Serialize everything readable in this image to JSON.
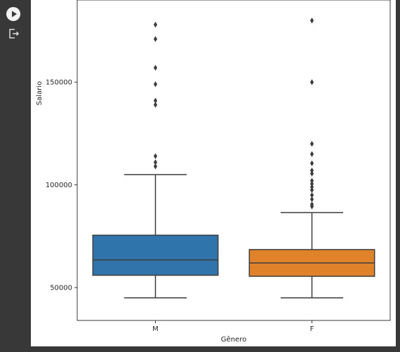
{
  "toolbar": {
    "run_icon": "play-circle-icon",
    "output_icon": "output-export-icon"
  },
  "chart_data": {
    "type": "box",
    "xlabel": "Gênero",
    "ylabel": "Salario",
    "categories": [
      "M",
      "F"
    ],
    "ylim": [
      34000,
      190000
    ],
    "yticks": [
      50000,
      100000,
      150000
    ],
    "ytick_labels": [
      "50000",
      "100000",
      "150000"
    ],
    "grid": false,
    "series": [
      {
        "category": "M",
        "color": "#2f75ab",
        "whisker_low": 45000,
        "q1": 56000,
        "median": 63500,
        "q3": 75500,
        "whisker_high": 105000,
        "outliers": [
          109000,
          111000,
          114000,
          139000,
          141000,
          149000,
          157000,
          171000,
          178000
        ]
      },
      {
        "category": "F",
        "color": "#e0822a",
        "whisker_low": 45000,
        "q1": 55500,
        "median": 62000,
        "q3": 68500,
        "whisker_high": 86500,
        "outliers": [
          89500,
          90500,
          93000,
          95000,
          97500,
          99000,
          100500,
          102000,
          105500,
          107000,
          110500,
          115000,
          120000,
          150000,
          180000
        ]
      }
    ]
  }
}
